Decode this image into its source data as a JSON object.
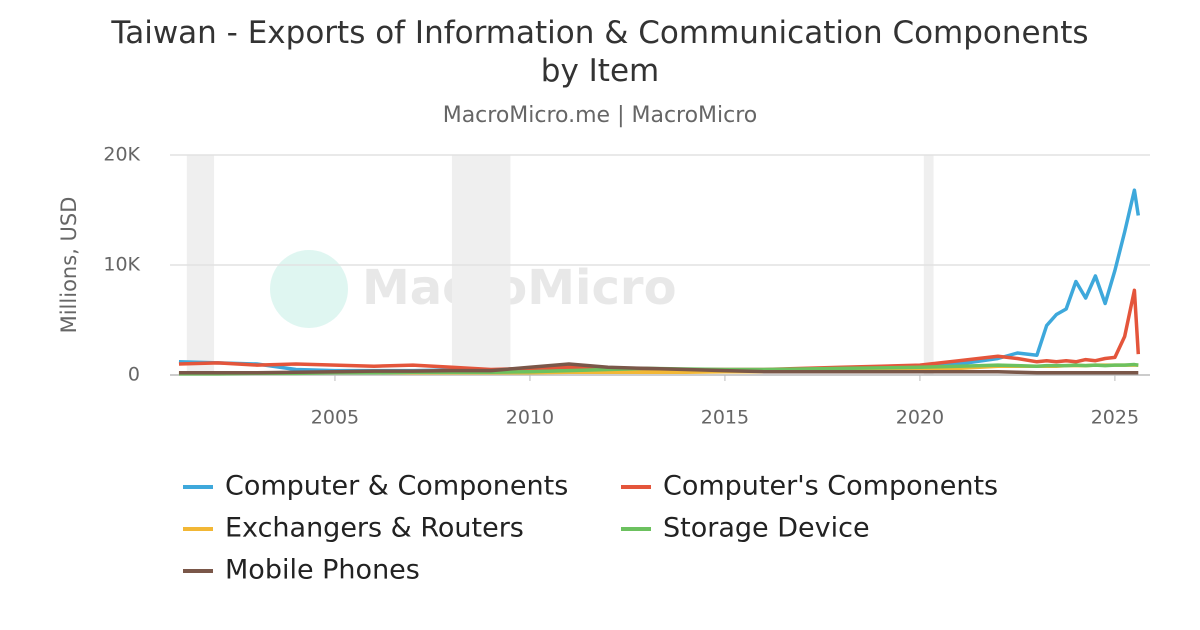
{
  "chart_data": {
    "type": "line",
    "title": "Taiwan - Exports of Information & Communication Components by Item",
    "subtitle": "MacroMicro.me | MacroMicro",
    "watermark": "MacroMicro",
    "y_label": "Millions, USD",
    "x": [
      2001,
      2002,
      2003,
      2004,
      2005,
      2006,
      2007,
      2008,
      2009,
      2010,
      2011,
      2012,
      2013,
      2014,
      2015,
      2016,
      2017,
      2018,
      2019,
      2020,
      2021,
      2022,
      2022.5,
      2023,
      2023.25,
      2023.5,
      2023.75,
      2024,
      2024.25,
      2024.5,
      2024.75,
      2025,
      2025.25,
      2025.5,
      2025.6
    ],
    "series": [
      {
        "name": "Computer & Components",
        "color": "#3ea8db",
        "values": [
          1200,
          1100,
          1000,
          500,
          400,
          400,
          400,
          450,
          400,
          500,
          500,
          450,
          450,
          400,
          400,
          400,
          450,
          600,
          700,
          800,
          1000,
          1500,
          2000,
          1800,
          4500,
          5500,
          6000,
          8500,
          7000,
          9000,
          6500,
          9500,
          13000,
          16800,
          14500
        ]
      },
      {
        "name": "Computer's Components",
        "color": "#e4553b",
        "values": [
          1000,
          1100,
          900,
          1000,
          900,
          800,
          900,
          700,
          500,
          600,
          700,
          600,
          500,
          500,
          500,
          500,
          600,
          700,
          800,
          900,
          1300,
          1700,
          1500,
          1200,
          1300,
          1200,
          1300,
          1200,
          1400,
          1300,
          1500,
          1600,
          3500,
          7700,
          1900
        ]
      },
      {
        "name": "Exchangers & Routers",
        "color": "#f2b735",
        "values": [
          200,
          200,
          200,
          200,
          200,
          200,
          200,
          200,
          200,
          200,
          250,
          250,
          250,
          250,
          300,
          300,
          350,
          400,
          450,
          500,
          600,
          800,
          800,
          800,
          800,
          800,
          850,
          850,
          850,
          900,
          900,
          900,
          900,
          900,
          900
        ]
      },
      {
        "name": "Storage Device",
        "color": "#6cc15f",
        "values": [
          100,
          100,
          150,
          150,
          200,
          200,
          250,
          250,
          250,
          300,
          400,
          500,
          600,
          550,
          500,
          500,
          550,
          600,
          650,
          700,
          800,
          900,
          850,
          800,
          850,
          850,
          850,
          900,
          850,
          900,
          850,
          900,
          900,
          950,
          900
        ]
      },
      {
        "name": "Mobile Phones",
        "color": "#7a5749",
        "values": [
          200,
          200,
          200,
          250,
          300,
          350,
          350,
          400,
          400,
          700,
          1000,
          700,
          600,
          500,
          400,
          300,
          300,
          300,
          300,
          300,
          300,
          300,
          250,
          200,
          200,
          200,
          200,
          200,
          200,
          200,
          200,
          200,
          200,
          200,
          200
        ]
      }
    ],
    "shaded_periods": [
      [
        2001.2,
        2001.9
      ],
      [
        2008.0,
        2009.5
      ],
      [
        2020.1,
        2020.35
      ]
    ],
    "xlim": [
      2000.77,
      2025.9
    ],
    "xticks": [
      2005,
      2010,
      2015,
      2020,
      2025
    ],
    "ylim": [
      0,
      20000
    ],
    "yticks": [
      {
        "value": 0,
        "label": "0"
      },
      {
        "value": 10000,
        "label": "10K"
      },
      {
        "value": 20000,
        "label": "20K"
      }
    ],
    "grid": true
  }
}
